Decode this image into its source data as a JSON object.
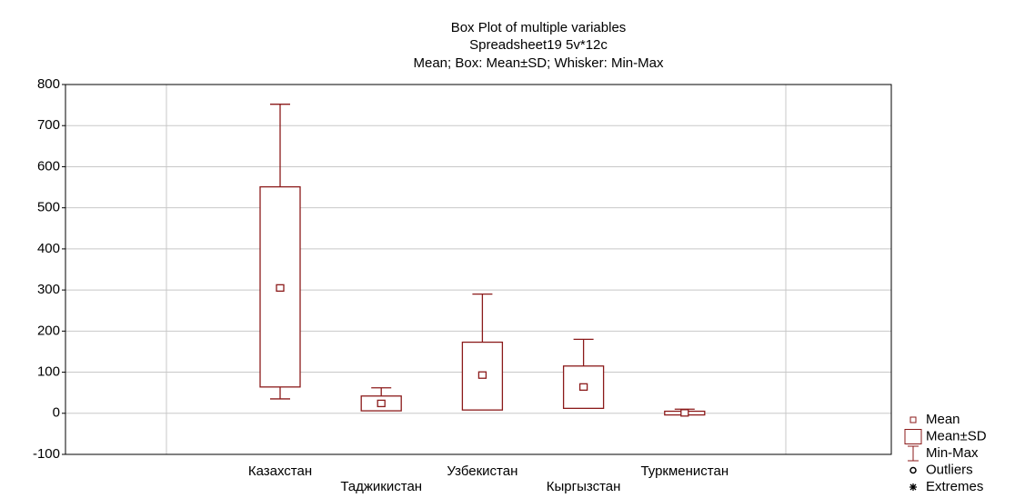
{
  "chart_data": {
    "type": "box",
    "title": "Box Plot of multiple variables",
    "subtitle": "Spreadsheet19 5v*12c",
    "description": "Mean; Box: Mean±SD; Whisker: Min-Max",
    "categories": [
      "Казахстан",
      "Таджикистан",
      "Узбекистан",
      "Кыргызстан",
      "Туркменистан"
    ],
    "mean": [
      305,
      24,
      93,
      64,
      1
    ],
    "mean_minus_sd": [
      64,
      6,
      8,
      12,
      -4
    ],
    "mean_plus_sd": [
      551,
      42,
      173,
      115,
      5
    ],
    "min": [
      35,
      8,
      10,
      12,
      -3
    ],
    "max": [
      752,
      62,
      290,
      180,
      10
    ],
    "color": "#8b1a1a",
    "ylim": [
      -100,
      800
    ],
    "yticks": [
      -100,
      0,
      100,
      200,
      300,
      400,
      500,
      600,
      700,
      800
    ],
    "grid": true,
    "legend": [
      "Mean",
      "Mean±SD",
      "Min-Max",
      "Outliers",
      "Extremes"
    ],
    "legend_position": "bottom-right"
  }
}
